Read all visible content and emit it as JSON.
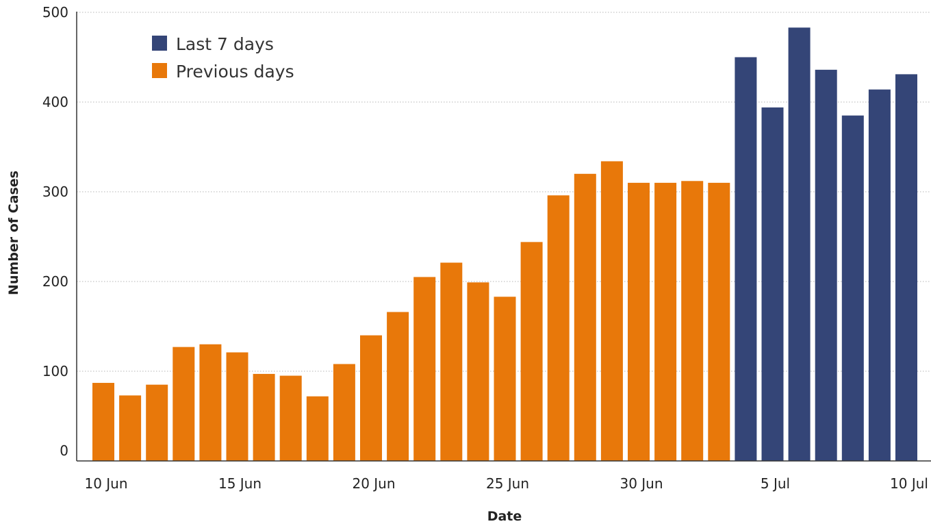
{
  "chart_data": {
    "type": "bar",
    "xlabel": "Date",
    "ylabel": "Number of Cases",
    "ylim": [
      0,
      500
    ],
    "yticks": [
      0,
      100,
      200,
      300,
      400,
      500
    ],
    "grid": true,
    "legend_position": "top-left",
    "x_tick_labels": [
      {
        "category": "10 Jun",
        "label": "10 Jun"
      },
      {
        "category": "15 Jun",
        "label": "15 Jun"
      },
      {
        "category": "20 Jun",
        "label": "20 Jun"
      },
      {
        "category": "25 Jun",
        "label": "25 Jun"
      },
      {
        "category": "30 Jun",
        "label": "30 Jun"
      },
      {
        "category": "5 Jul",
        "label": "5 Jul"
      },
      {
        "category": "10 Jul",
        "label": "10 Jul"
      }
    ],
    "categories": [
      "10 Jun",
      "11 Jun",
      "12 Jun",
      "13 Jun",
      "14 Jun",
      "15 Jun",
      "16 Jun",
      "17 Jun",
      "18 Jun",
      "19 Jun",
      "20 Jun",
      "21 Jun",
      "22 Jun",
      "23 Jun",
      "24 Jun",
      "25 Jun",
      "26 Jun",
      "27 Jun",
      "28 Jun",
      "29 Jun",
      "30 Jun",
      "1 Jul",
      "2 Jul",
      "3 Jul",
      "4 Jul",
      "5 Jul",
      "6 Jul",
      "7 Jul",
      "8 Jul",
      "9 Jul",
      "10 Jul"
    ],
    "series": [
      {
        "name": "Previous days",
        "color": "#E8780A",
        "values": [
          87,
          73,
          85,
          127,
          130,
          121,
          97,
          95,
          72,
          108,
          140,
          166,
          205,
          221,
          199,
          183,
          244,
          296,
          320,
          334,
          310,
          310,
          312,
          310,
          null,
          null,
          null,
          null,
          null,
          null,
          null
        ]
      },
      {
        "name": "Last 7 days",
        "color": "#344577",
        "values": [
          null,
          null,
          null,
          null,
          null,
          null,
          null,
          null,
          null,
          null,
          null,
          null,
          null,
          null,
          null,
          null,
          null,
          null,
          null,
          null,
          null,
          null,
          null,
          null,
          450,
          394,
          483,
          436,
          385,
          414,
          431
        ]
      }
    ],
    "legend": [
      {
        "name": "Last 7 days",
        "color": "#344577"
      },
      {
        "name": "Previous days",
        "color": "#E8780A"
      }
    ]
  }
}
